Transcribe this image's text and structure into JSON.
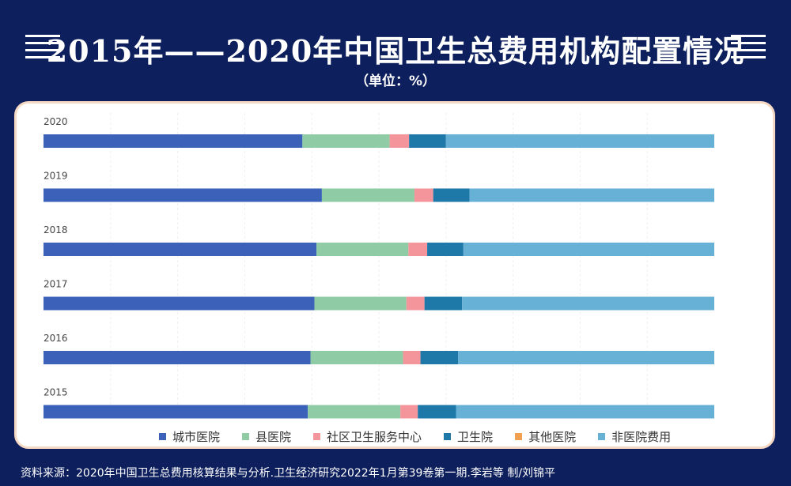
{
  "header": {
    "title": "2015年——2020年中国卫生总费用机构配置情况",
    "unit": "（单位：%）"
  },
  "footer": {
    "source": "资料来源：2020年中国卫生总费用核算结果与分析.卫生经济研究2022年1月第39卷第一期.李岩等 制/刘锦平"
  },
  "chart_data": {
    "type": "bar",
    "orientation": "horizontal",
    "stacked": true,
    "categories": [
      "2020",
      "2019",
      "2018",
      "2017",
      "2016",
      "2015"
    ],
    "series": [
      {
        "name": "城市医院",
        "color": "#3b61b8",
        "values": [
          38.6,
          41.5,
          40.7,
          40.4,
          39.8,
          39.4
        ]
      },
      {
        "name": "县医院",
        "color": "#8fcca6",
        "values": [
          13.0,
          13.8,
          13.7,
          13.7,
          13.8,
          13.8
        ]
      },
      {
        "name": "社区卫生服务中心",
        "color": "#f4959c",
        "values": [
          2.9,
          2.8,
          2.8,
          2.7,
          2.6,
          2.6
        ]
      },
      {
        "name": "卫生院",
        "color": "#1e79a8",
        "values": [
          5.5,
          5.4,
          5.4,
          5.6,
          5.6,
          5.7
        ]
      },
      {
        "name": "其他医院",
        "color": "#f0a050",
        "values": [
          0,
          0,
          0,
          0,
          0,
          0
        ]
      },
      {
        "name": "非医院费用",
        "color": "#67b0d6",
        "values": [
          40.0,
          36.5,
          37.4,
          37.6,
          38.2,
          38.5
        ]
      }
    ],
    "xlim": [
      0,
      100
    ],
    "grid": true,
    "legend_position": "bottom"
  }
}
